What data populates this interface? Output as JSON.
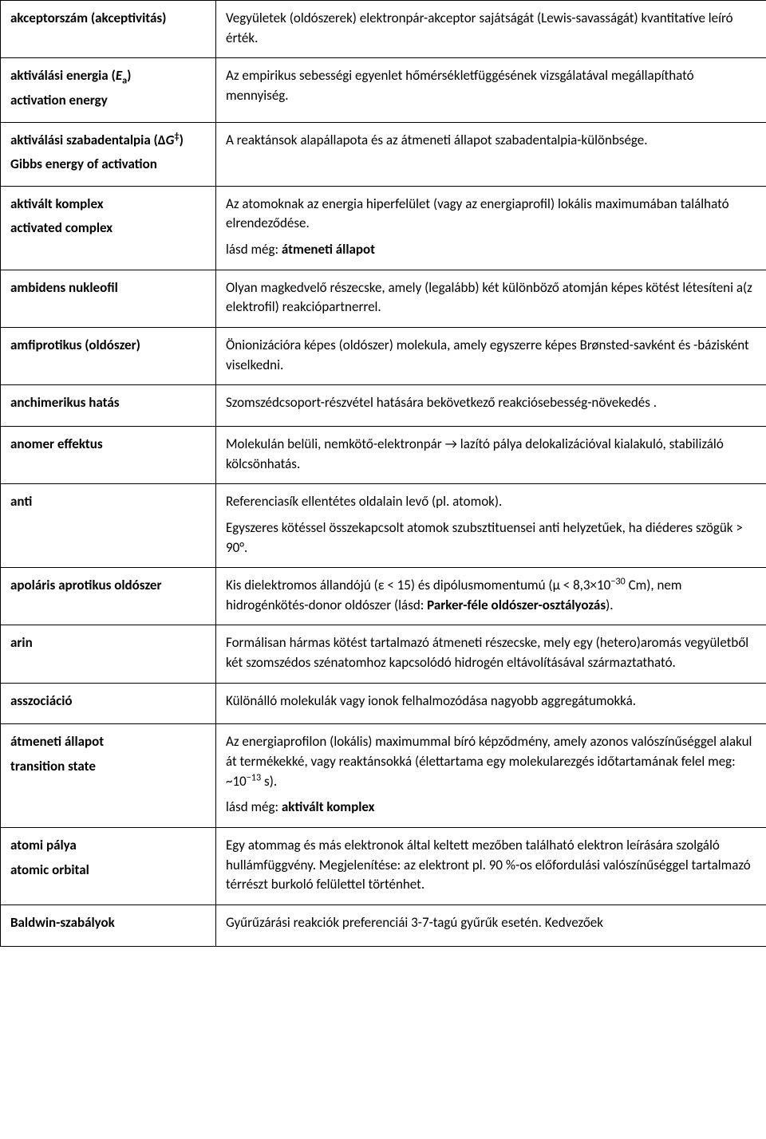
{
  "rows": [
    {
      "term_lines": [
        "akceptorszám (akceptivitás)"
      ],
      "defs": [
        {
          "text": "Vegyületek (oldószerek) elektronpár-akceptor sajátságát (Lewis-savasságát) kvantitatíve leíró érték."
        }
      ]
    },
    {
      "term_lines_html": [
        "aktiválási energia (<span class=\"ivar\">E</span><sub>a</sub>)",
        "activation energy"
      ],
      "defs": [
        {
          "text": "Az empirikus sebességi egyenlet hőmérsékletfüggésének vizsgálatával megállapítható mennyiség."
        }
      ]
    },
    {
      "term_lines_html": [
        "aktiválási szabadentalpia (∆<span class=\"ivar\">G</span><sup>‡</sup>)",
        "Gibbs energy of activation"
      ],
      "defs": [
        {
          "text": "A reaktánsok alapállapota és az átmeneti állapot szabadentalpia-különbsége."
        }
      ]
    },
    {
      "term_lines": [
        "aktivált komplex",
        "activated complex"
      ],
      "defs": [
        {
          "text": "Az atomoknak az energia hiperfelület (vagy az energiaprofil) lokális maximumában található elrendeződése."
        },
        {
          "see_label": "lásd még: ",
          "see_target": "átmeneti állapot"
        }
      ]
    },
    {
      "term_lines": [
        "ambidens nukleofil"
      ],
      "defs": [
        {
          "text": "Olyan magkedvelő részecske, amely (legalább) két különböző atomján képes kötést létesíteni a(z elektrofil) reakciópartnerrel."
        }
      ]
    },
    {
      "term_lines": [
        "amfiprotikus (oldószer)"
      ],
      "defs": [
        {
          "text": "Önionizációra képes (oldószer) molekula, amely egyszerre képes Brønsted-savként és -bázisként viselkedni."
        }
      ]
    },
    {
      "term_lines": [
        "anchimerikus hatás"
      ],
      "defs": [
        {
          "text": "Szomszédcsoport-részvétel hatására bekövetkező reakciósebesség-növekedés ."
        }
      ]
    },
    {
      "term_lines": [
        "anomer effektus"
      ],
      "defs": [
        {
          "text": "Molekulán belüli, nemkötő-elektronpár → lazító pálya delokalizációval kialakuló, stabilizáló kölcsönhatás."
        }
      ]
    },
    {
      "term_lines": [
        "anti"
      ],
      "defs": [
        {
          "text": "Referenciasík ellentétes oldalain levő (pl. atomok)."
        },
        {
          "text": "Egyszeres kötéssel összekapcsolt atomok szubsztituensei anti helyzetűek, ha diéderes szögük > 90°."
        }
      ]
    },
    {
      "term_lines": [
        "apoláris aprotikus oldószer"
      ],
      "defs": [
        {
          "html": "Kis dielektromos állandójú (ε &lt; 15) és dipólusmomentumú (μ &lt; 8,3×10<sup>−30</sup> Cm), nem hidrogénkötés-donor oldószer (lásd: <span class=\"bold-inline\">Parker-féle oldószer-osztályozás</span>)."
        }
      ]
    },
    {
      "term_lines": [
        "arin"
      ],
      "defs": [
        {
          "text": "Formálisan hármas kötést tartalmazó átmeneti részecske, mely egy (hetero)aromás vegyületből két szomszédos szénatomhoz kapcsolódó hidrogén eltávolításával származtatható."
        }
      ]
    },
    {
      "term_lines": [
        "asszociáció"
      ],
      "defs": [
        {
          "text": "Különálló molekulák vagy ionok felhalmozódása nagyobb aggregátumokká."
        }
      ]
    },
    {
      "term_lines": [
        "átmeneti állapot",
        "transition state"
      ],
      "defs": [
        {
          "html": "Az energiaprofilon (lokális) maximummal bíró képződmény, amely azonos valószínűséggel alakul át termékekké, vagy reaktánsokká (élettartama egy molekularezgés időtartamának felel meg: ~10<sup>−13</sup> s)."
        },
        {
          "see_label": "lásd még: ",
          "see_target": "aktivált komplex"
        }
      ]
    },
    {
      "term_lines": [
        "atomi pálya",
        "atomic orbital"
      ],
      "defs": [
        {
          "text": "Egy atommag és más elektronok által keltett mezőben található elektron leírására szolgáló hullámfüggvény. Megjelenítése: az elektront pl. 90 %-os előfordulási valószínűséggel tartalmazó térrészt burkoló felülettel történhet."
        }
      ]
    },
    {
      "term_lines": [
        "Baldwin-szabályok"
      ],
      "defs": [
        {
          "text": "Gyűrűzárási reakciók preferenciái 3-7-tagú gyűrűk esetén. Kedvezőek"
        }
      ]
    }
  ]
}
